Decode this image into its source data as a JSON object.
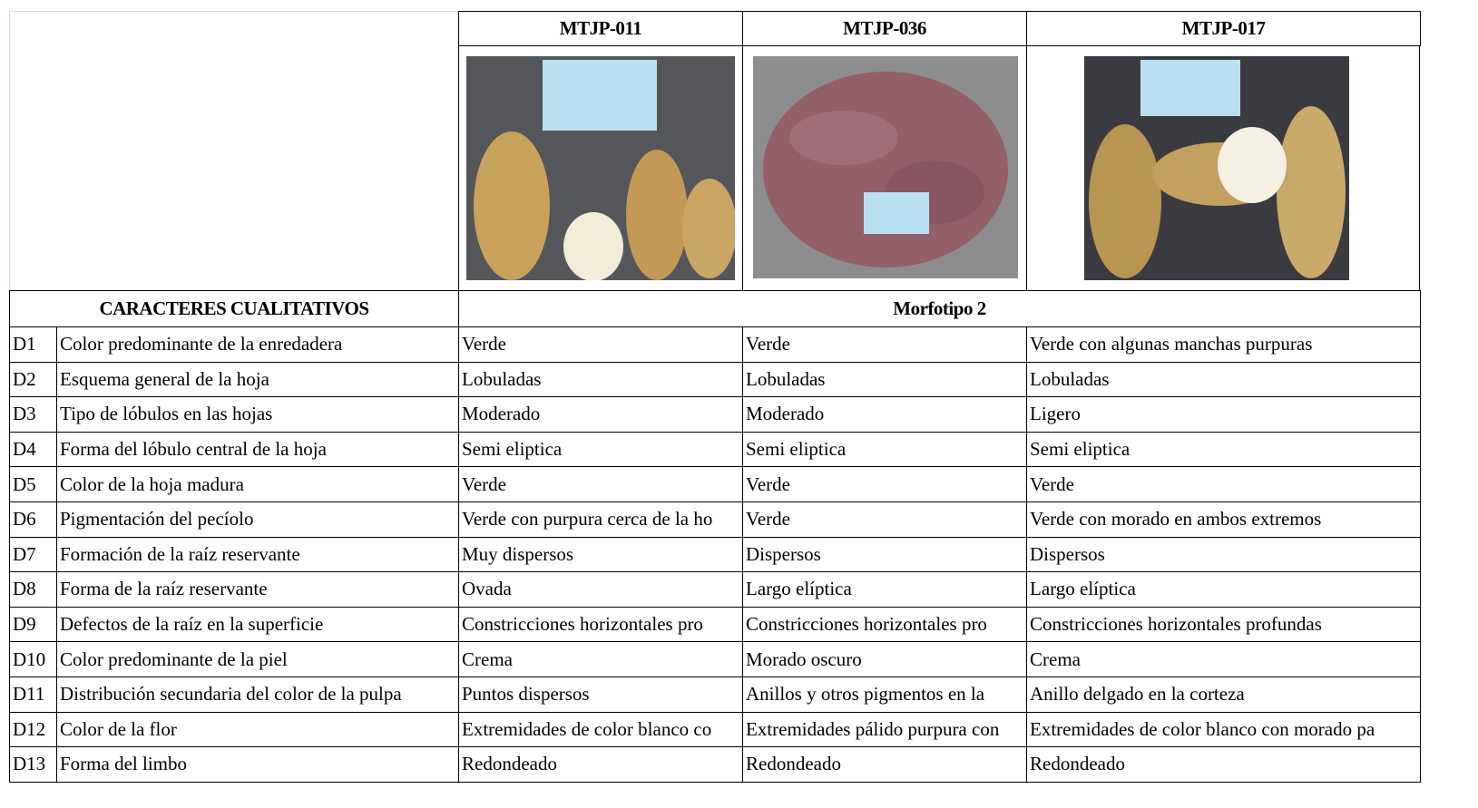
{
  "header": {
    "accessions": [
      "MTJP-011",
      "MTJP-036",
      "MTJP-017"
    ]
  },
  "table": {
    "section_label": "CARACTERES CUALITATIVOS",
    "group_label": "Morfotipo 2",
    "rows": [
      [
        "D1",
        "Color predominante de la enredadera",
        "Verde",
        "Verde",
        "Verde con algunas manchas purpuras"
      ],
      [
        "D2",
        "Esquema general de la hoja",
        "Lobuladas",
        "Lobuladas",
        "Lobuladas"
      ],
      [
        "D3",
        "Tipo de lóbulos en las hojas",
        "Moderado",
        "Moderado",
        "Ligero"
      ],
      [
        "D4",
        "Forma del lóbulo central de la hoja",
        "Semi eliptica",
        "Semi eliptica",
        "Semi eliptica"
      ],
      [
        "D5",
        "Color de la hoja madura",
        "Verde",
        "Verde",
        "Verde"
      ],
      [
        "D6",
        "Pigmentación del pecíolo",
        "Verde con purpura cerca de la ho",
        "Verde",
        "Verde con morado en ambos extremos"
      ],
      [
        "D7",
        "Formación de la raíz reservante",
        "Muy dispersos",
        "Dispersos",
        "Dispersos"
      ],
      [
        "D8",
        "Forma de la raíz reservante",
        "Ovada",
        "Largo elíptica",
        "Largo elíptica"
      ],
      [
        "D9",
        "Defectos de la raíz en la superficie",
        "Constricciones horizontales pro",
        "Constricciones horizontales pro",
        "Constricciones horizontales profundas"
      ],
      [
        "D10",
        "Color predominante de la piel",
        "Crema",
        "Morado oscuro",
        "Crema"
      ],
      [
        "D11",
        "Distribución secundaria del color de la pulpa",
        "Puntos dispersos",
        "Anillos y otros pigmentos en la",
        "Anillo delgado en la corteza"
      ],
      [
        "D12",
        "Color de la flor",
        "Extremidades de color blanco co",
        "Extremidades pálido purpura con",
        "Extremidades de color blanco con morado pa"
      ],
      [
        "D13",
        "Forma del limbo",
        "Redondeado",
        "Redondeado",
        "Redondeado"
      ]
    ]
  }
}
